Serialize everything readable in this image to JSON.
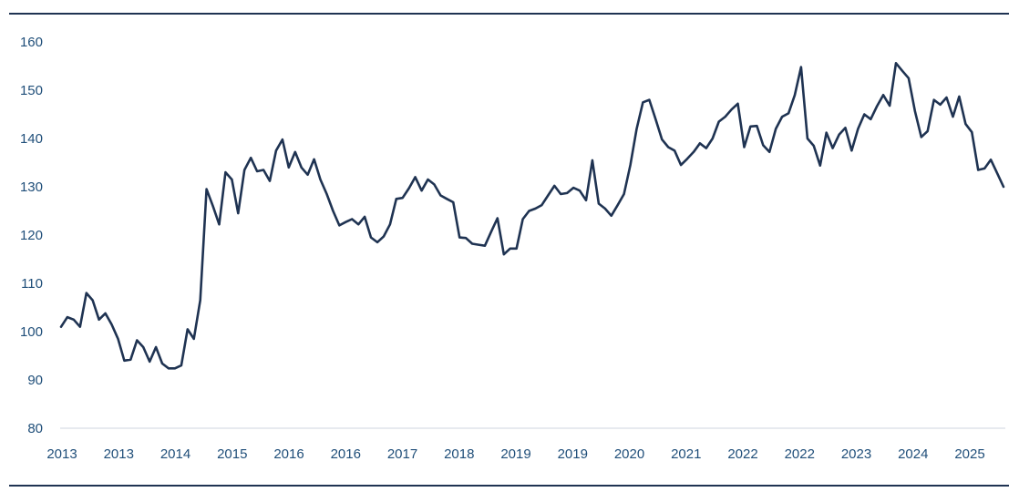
{
  "chart_data": {
    "type": "line",
    "title": "",
    "xlabel": "",
    "ylabel": "",
    "ylim": [
      80,
      160
    ],
    "y_ticks": [
      80,
      90,
      100,
      110,
      120,
      130,
      140,
      150,
      160
    ],
    "x_tick_labels": [
      "2013",
      "2013",
      "2014",
      "2015",
      "2016",
      "2016",
      "2017",
      "2018",
      "2019",
      "2019",
      "2020",
      "2021",
      "2022",
      "2022",
      "2023",
      "2024",
      "2025"
    ],
    "grid": false,
    "legend": "none",
    "colors": {
      "line": "#1f3352",
      "tick_text": "#1f4e79",
      "rule": "#1f3352"
    },
    "series": [
      {
        "x_start": 2012.667,
        "x_step": 0.08333,
        "values": [
          101,
          103,
          102.5,
          101,
          108,
          106.5,
          102.5,
          103.8,
          101.5,
          98.5,
          94,
          94.2,
          98.2,
          96.8,
          93.8,
          96.8,
          93.4,
          92.4,
          92.4,
          93,
          100.5,
          98.5,
          106.5,
          129.5,
          126,
          122.2,
          133,
          131.5,
          124.5,
          133.5,
          136,
          133.2,
          133.5,
          131.2,
          137.5,
          139.8,
          134,
          137.2,
          134,
          132.5,
          135.7,
          131.5,
          128.5,
          125,
          122,
          122.7,
          123.3,
          122.2,
          123.8,
          119.5,
          118.5,
          119.7,
          122.2,
          127.5,
          127.7,
          129.7,
          132,
          129.2,
          131.5,
          130.5,
          128.2,
          127.5,
          126.8,
          119.5,
          119.4,
          118.2,
          118,
          117.8,
          120.7,
          123.5,
          116,
          117.2,
          117.2,
          123.3,
          125,
          125.5,
          126.2,
          128.2,
          130.2,
          128.5,
          128.7,
          129.8,
          129.2,
          127.2,
          135.5,
          126.5,
          125.5,
          124,
          126.2,
          128.5,
          134.5,
          142,
          147.5,
          148,
          144,
          139.8,
          138.2,
          137.5,
          134.5,
          135.8,
          137.2,
          139,
          138,
          140,
          143.5,
          144.5,
          146,
          147.2,
          138.2,
          142.5,
          142.6,
          138.6,
          137.2,
          142,
          144.5,
          145.2,
          149,
          154.8,
          140,
          138.5,
          134.4,
          141.2,
          138,
          140.8,
          142.2,
          137.5,
          142,
          145,
          144,
          146.7,
          149,
          146.8,
          155.6,
          154,
          152.5,
          145.7,
          140.3,
          141.5,
          148,
          147,
          148.5,
          144.5,
          148.7,
          143,
          141.3,
          133.5,
          133.8,
          135.6,
          132.8,
          130
        ]
      }
    ]
  }
}
